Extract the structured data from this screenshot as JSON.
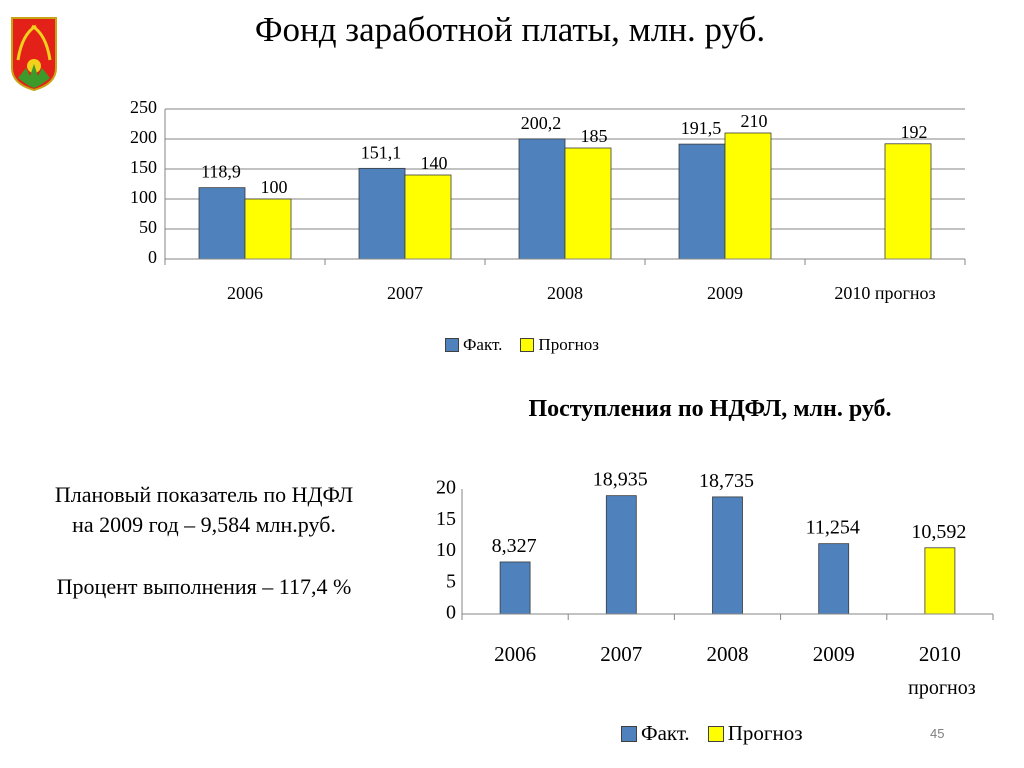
{
  "slide": {
    "title": "Фонд заработной платы, млн. руб.",
    "page_number": "45"
  },
  "notes": {
    "line1": "Плановый показатель по НДФЛ",
    "line2": "на 2009 год – 9,584 млн.руб.",
    "line3": "Процент выполнения – 117,4 %"
  },
  "colors": {
    "fact": "#4f81bd",
    "forecast": "#ffff00",
    "axis": "#868686",
    "grid": "#868686"
  },
  "chart_data": [
    {
      "type": "bar",
      "categories": [
        "2006",
        "2007",
        "2008",
        "2009",
        "2010 прогноз"
      ],
      "series": [
        {
          "name": "Факт.",
          "values": [
            118.9,
            151.1,
            200.2,
            191.5,
            null
          ],
          "labels": [
            "118,9",
            "151,1",
            "200,2",
            "191,5",
            ""
          ]
        },
        {
          "name": "Прогноз",
          "values": [
            100,
            140,
            185,
            210,
            192
          ],
          "labels": [
            "100",
            "140",
            "185",
            "210",
            "192"
          ]
        }
      ],
      "title": "",
      "xlabel": "",
      "ylabel": "",
      "ylim": [
        0,
        250
      ],
      "yticks": [
        "0",
        "50",
        "100",
        "150",
        "200",
        "250"
      ],
      "grid": true,
      "legend": "bottom"
    },
    {
      "type": "bar",
      "title": "Поступления по НДФЛ, млн. руб.",
      "categories": [
        "2006",
        "2007",
        "2008",
        "2009",
        "2010"
      ],
      "category_sublabels": [
        "",
        "",
        "",
        "",
        "прогноз"
      ],
      "values": [
        8.327,
        18.935,
        18.735,
        11.254,
        10.592
      ],
      "labels": [
        "8,327",
        "18,935",
        "18,735",
        "11,254",
        "10,592"
      ],
      "bar_series": [
        "Факт.",
        "Факт.",
        "Факт.",
        "Факт.",
        "Прогноз"
      ],
      "series_names": [
        "Факт.",
        "Прогноз"
      ],
      "xlabel": "",
      "ylabel": "",
      "ylim": [
        0,
        20
      ],
      "yticks": [
        "0",
        "5",
        "10",
        "15",
        "20"
      ],
      "grid": false,
      "legend": "bottom"
    }
  ]
}
